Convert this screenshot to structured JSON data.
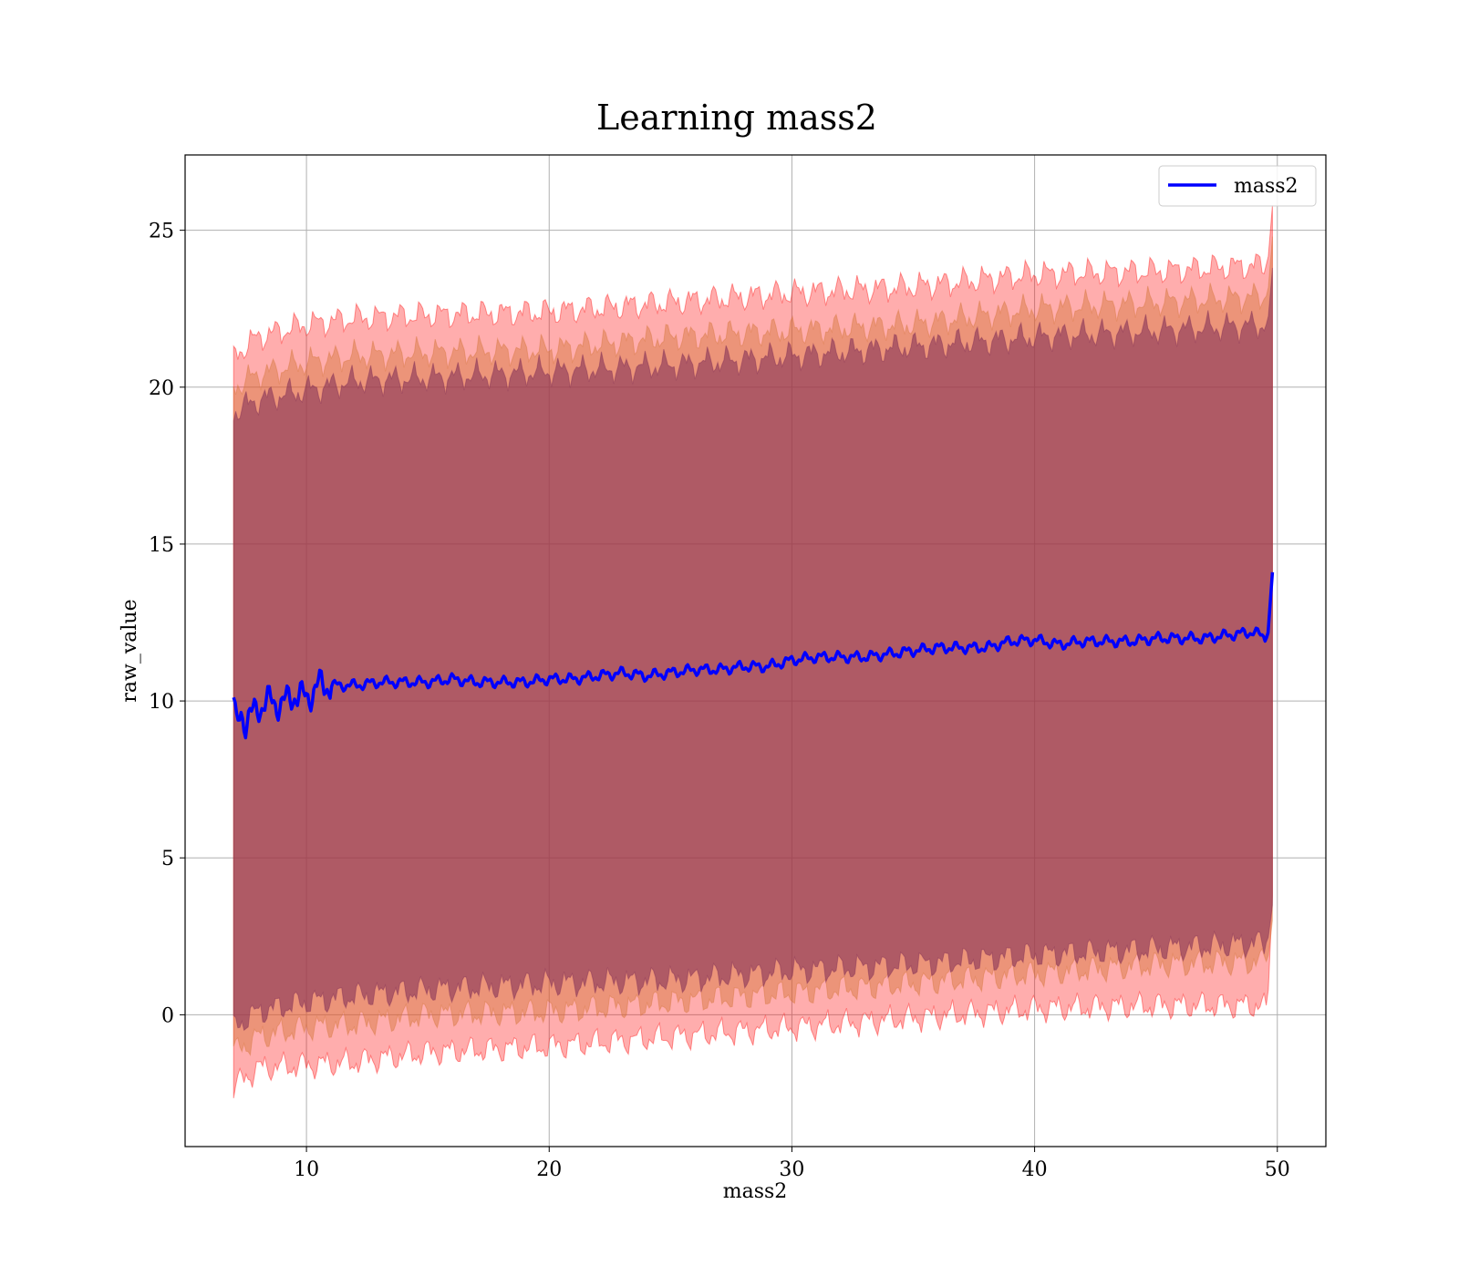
{
  "chart_data": {
    "type": "line",
    "title": "Learning mass2",
    "xlabel": "mass2",
    "ylabel": "raw_value",
    "xlim": [
      5,
      52
    ],
    "ylim": [
      -4.2,
      27.4
    ],
    "xticks": [
      10,
      20,
      30,
      40,
      50
    ],
    "yticks": [
      0,
      5,
      10,
      15,
      20,
      25
    ],
    "grid": true,
    "legend": {
      "position": "top-right",
      "entries": [
        "mass2"
      ]
    },
    "series": [
      {
        "name": "mass2",
        "color": "#0000ff",
        "x": [
          7.0,
          7.1,
          7.3,
          7.5,
          8.0,
          8.5,
          9.0,
          9.5,
          10.0,
          10.5,
          11,
          12,
          13,
          14,
          15,
          16,
          17,
          18,
          19,
          20,
          21,
          22,
          23,
          24,
          25,
          26,
          27,
          28,
          29,
          30,
          31,
          32,
          33,
          34,
          35,
          36,
          37,
          38,
          39,
          40,
          41,
          42,
          43,
          44,
          45,
          46,
          47,
          48,
          49,
          49.6,
          49.8
        ],
        "mean": [
          9.9,
          9.1,
          9.7,
          9.3,
          9.8,
          10.0,
          9.9,
          10.2,
          10.1,
          10.5,
          10.5,
          10.5,
          10.6,
          10.6,
          10.6,
          10.7,
          10.6,
          10.6,
          10.6,
          10.7,
          10.7,
          10.8,
          10.9,
          10.8,
          10.9,
          11.0,
          11.0,
          11.1,
          11.1,
          11.3,
          11.4,
          11.4,
          11.4,
          11.5,
          11.6,
          11.7,
          11.7,
          11.7,
          11.9,
          11.95,
          11.8,
          11.9,
          11.9,
          11.9,
          12.0,
          12.0,
          12.0,
          12.1,
          12.2,
          12.0,
          14.1
        ]
      }
    ],
    "bands": [
      {
        "color": "#ff0000",
        "opacity": 0.32,
        "x": [
          7.0,
          8,
          10,
          12,
          15,
          20,
          25,
          30,
          35,
          40,
          45,
          49.6,
          49.8
        ],
        "upper": [
          21.0,
          21.6,
          22.0,
          22.2,
          22.3,
          22.4,
          22.7,
          23.0,
          23.2,
          23.6,
          23.7,
          23.9,
          25.8
        ],
        "lower": [
          -2.3,
          -1.7,
          -1.6,
          -1.5,
          -1.2,
          -1.0,
          -0.7,
          -0.4,
          -0.1,
          0.2,
          0.3,
          0.3,
          3.8
        ]
      },
      {
        "color": "#d4763a",
        "opacity": 0.45,
        "x": [
          7.0,
          8,
          10,
          12,
          15,
          20,
          25,
          30,
          35,
          40,
          45,
          49.6,
          49.8
        ],
        "upper": [
          20.0,
          20.4,
          20.8,
          21.0,
          21.1,
          21.2,
          21.6,
          21.8,
          22.0,
          22.5,
          22.7,
          22.9,
          24.8
        ],
        "lower": [
          -1.2,
          -0.7,
          -0.4,
          -0.3,
          0.0,
          0.1,
          0.4,
          0.7,
          1.0,
          1.3,
          1.6,
          1.7,
          3.0
        ]
      },
      {
        "color": "#7d2a55",
        "opacity": 0.55,
        "x": [
          7.0,
          8,
          10,
          12,
          15,
          20,
          25,
          30,
          35,
          40,
          45,
          49.6,
          49.8
        ],
        "upper": [
          19.2,
          19.6,
          19.9,
          20.2,
          20.3,
          20.5,
          20.7,
          21.0,
          21.3,
          21.6,
          21.8,
          22.0,
          23.8
        ],
        "lower": [
          -0.4,
          0.1,
          0.4,
          0.6,
          0.8,
          1.0,
          1.1,
          1.4,
          1.6,
          1.9,
          2.1,
          2.3,
          3.5
        ]
      }
    ]
  }
}
